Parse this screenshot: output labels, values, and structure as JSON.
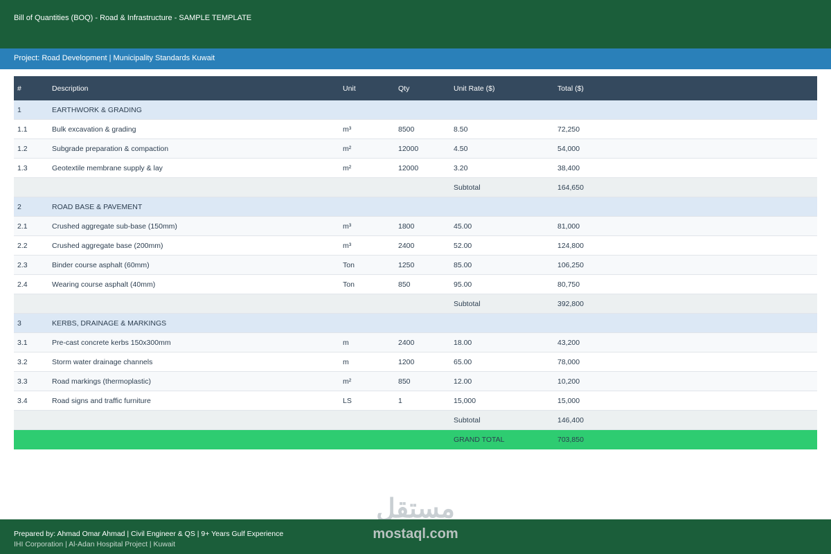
{
  "header": {
    "title": "Bill of Quantities (BOQ) - Road & Infrastructure - SAMPLE TEMPLATE",
    "project": "Project: Road Development | Municipality Standards Kuwait"
  },
  "table": {
    "columns": [
      "#",
      "Description",
      "Unit",
      "Qty",
      "Unit Rate ($)",
      "Total ($)"
    ],
    "sections": [
      {
        "number": "1",
        "title": "EARTHWORK & GRADING",
        "items": [
          [
            "1.1",
            "Bulk excavation & grading",
            "m³",
            "8500",
            "8.50",
            "72,250"
          ],
          [
            "1.2",
            "Subgrade preparation & compaction",
            "m²",
            "12000",
            "4.50",
            "54,000"
          ],
          [
            "1.3",
            "Geotextile membrane supply & lay",
            "m²",
            "12000",
            "3.20",
            "38,400"
          ]
        ],
        "subtotal_label": "Subtotal",
        "subtotal": "164,650"
      },
      {
        "number": "2",
        "title": "ROAD BASE & PAVEMENT",
        "items": [
          [
            "2.1",
            "Crushed aggregate sub-base (150mm)",
            "m³",
            "1800",
            "45.00",
            "81,000"
          ],
          [
            "2.2",
            "Crushed aggregate base (200mm)",
            "m³",
            "2400",
            "52.00",
            "124,800"
          ],
          [
            "2.3",
            "Binder course asphalt (60mm)",
            "Ton",
            "1250",
            "85.00",
            "106,250"
          ],
          [
            "2.4",
            "Wearing course asphalt (40mm)",
            "Ton",
            "850",
            "95.00",
            "80,750"
          ]
        ],
        "subtotal_label": "Subtotal",
        "subtotal": "392,800"
      },
      {
        "number": "3",
        "title": "KERBS, DRAINAGE & MARKINGS",
        "items": [
          [
            "3.1",
            "Pre-cast concrete kerbs 150x300mm",
            "m",
            "2400",
            "18.00",
            "43,200"
          ],
          [
            "3.2",
            "Storm water drainage channels",
            "m",
            "1200",
            "65.00",
            "78,000"
          ],
          [
            "3.3",
            "Road markings (thermoplastic)",
            "m²",
            "850",
            "12.00",
            "10,200"
          ],
          [
            "3.4",
            "Road signs and traffic furniture",
            "LS",
            "1",
            "15,000",
            "15,000"
          ]
        ],
        "subtotal_label": "Subtotal",
        "subtotal": "146,400"
      }
    ],
    "grand_total_label": "GRAND TOTAL",
    "grand_total": "703,850"
  },
  "watermark": {
    "logo": "مستقل",
    "site": "mostaql.com"
  },
  "footer": {
    "line1": "Prepared by: Ahmad Omar Ahmad | Civil Engineer & QS | 9+ Years Gulf Experience",
    "line2": "IHI Corporation | Al-Adan Hospital Project | Kuwait"
  }
}
